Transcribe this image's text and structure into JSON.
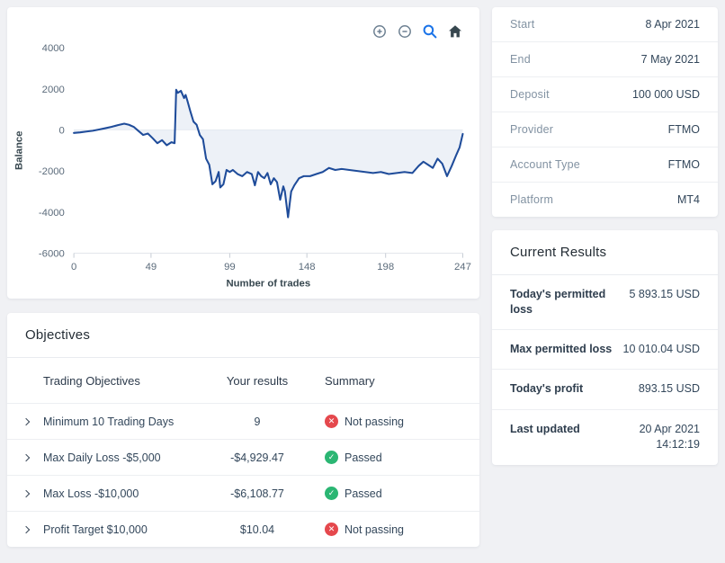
{
  "chart": {
    "toolbar_icons": [
      "zoom-in",
      "zoom-out",
      "selection-zoom",
      "reset-zoom"
    ]
  },
  "chart_data": {
    "type": "line",
    "title": "",
    "xlabel": "Number of trades",
    "ylabel": "Balance",
    "xlim": [
      0,
      247
    ],
    "ylim": [
      -6000,
      4000
    ],
    "xticks": [
      0,
      49,
      99,
      148,
      198,
      247
    ],
    "yticks": [
      4000,
      2000,
      0,
      -2000,
      -4000,
      -6000
    ],
    "line_color": "#1f4c9a",
    "grid": false,
    "x": [
      0,
      4,
      8,
      12,
      16,
      20,
      24,
      28,
      32,
      35,
      38,
      41,
      44,
      47,
      50,
      53,
      56,
      59,
      62,
      64,
      65,
      66,
      68,
      70,
      71,
      72,
      74,
      76,
      78,
      80,
      82,
      84,
      86,
      88,
      90,
      92,
      93,
      95,
      97,
      99,
      101,
      104,
      107,
      110,
      113,
      115,
      117,
      119,
      121,
      123,
      125,
      127,
      129,
      131,
      133,
      134,
      136,
      138,
      140,
      143,
      146,
      150,
      154,
      158,
      162,
      166,
      170,
      175,
      180,
      185,
      190,
      195,
      200,
      205,
      210,
      215,
      219,
      222,
      225,
      228,
      231,
      234,
      237,
      240,
      243,
      245,
      247
    ],
    "y": [
      -150,
      -120,
      -80,
      -40,
      20,
      80,
      150,
      230,
      300,
      250,
      150,
      -50,
      -250,
      -180,
      -400,
      -650,
      -500,
      -750,
      -600,
      -650,
      1950,
      1800,
      1900,
      1550,
      1700,
      1450,
      900,
      400,
      250,
      -250,
      -450,
      -1400,
      -1700,
      -2650,
      -2500,
      -2050,
      -2800,
      -2650,
      -1950,
      -2050,
      -1950,
      -2150,
      -2250,
      -2050,
      -2150,
      -2700,
      -2050,
      -2250,
      -2350,
      -2100,
      -2650,
      -2350,
      -2550,
      -3400,
      -2750,
      -3000,
      -4250,
      -3000,
      -2700,
      -2350,
      -2250,
      -2250,
      -2150,
      -2050,
      -1850,
      -1950,
      -1900,
      -1950,
      -2000,
      -2050,
      -2100,
      -2050,
      -2150,
      -2100,
      -2050,
      -2100,
      -1750,
      -1550,
      -1700,
      -1850,
      -1400,
      -1650,
      -2250,
      -1750,
      -1200,
      -850,
      -200
    ]
  },
  "account_info": {
    "rows": [
      {
        "label": "Start",
        "value": "8 Apr 2021"
      },
      {
        "label": "End",
        "value": "7 May 2021"
      },
      {
        "label": "Deposit",
        "value": "100 000 USD"
      },
      {
        "label": "Provider",
        "value": "FTMO"
      },
      {
        "label": "Account Type",
        "value": "FTMO"
      },
      {
        "label": "Platform",
        "value": "MT4"
      }
    ]
  },
  "current_results": {
    "title": "Current Results",
    "rows": [
      {
        "label": "Today's permitted loss",
        "value": "5 893.15 USD"
      },
      {
        "label": "Max permitted loss",
        "value": "10 010.04 USD"
      },
      {
        "label": "Today's profit",
        "value": "893.15 USD"
      },
      {
        "label": "Last updated",
        "value": "20 Apr 2021 14:12:19"
      }
    ]
  },
  "objectives": {
    "title": "Objectives",
    "columns": [
      "Trading Objectives",
      "Your results",
      "Summary"
    ],
    "rows": [
      {
        "objective": "Minimum 10 Trading Days",
        "result": "9",
        "status": "Not passing",
        "passed": false
      },
      {
        "objective": "Max Daily Loss -$5,000",
        "result": "-$4,929.47",
        "status": "Passed",
        "passed": true
      },
      {
        "objective": "Max Loss -$10,000",
        "result": "-$6,108.77",
        "status": "Passed",
        "passed": true
      },
      {
        "objective": "Profit Target $10,000",
        "result": "$10.04",
        "status": "Not passing",
        "passed": false
      }
    ]
  },
  "icons": {
    "pass": "✓",
    "fail": "✕"
  },
  "colors": {
    "line": "#1f4c9a",
    "passed": "#2bb673",
    "failed": "#e5484d",
    "toolbar_active": "#1a73e8",
    "card_background": "#ffffff",
    "page_background": "#f0f1f4"
  }
}
